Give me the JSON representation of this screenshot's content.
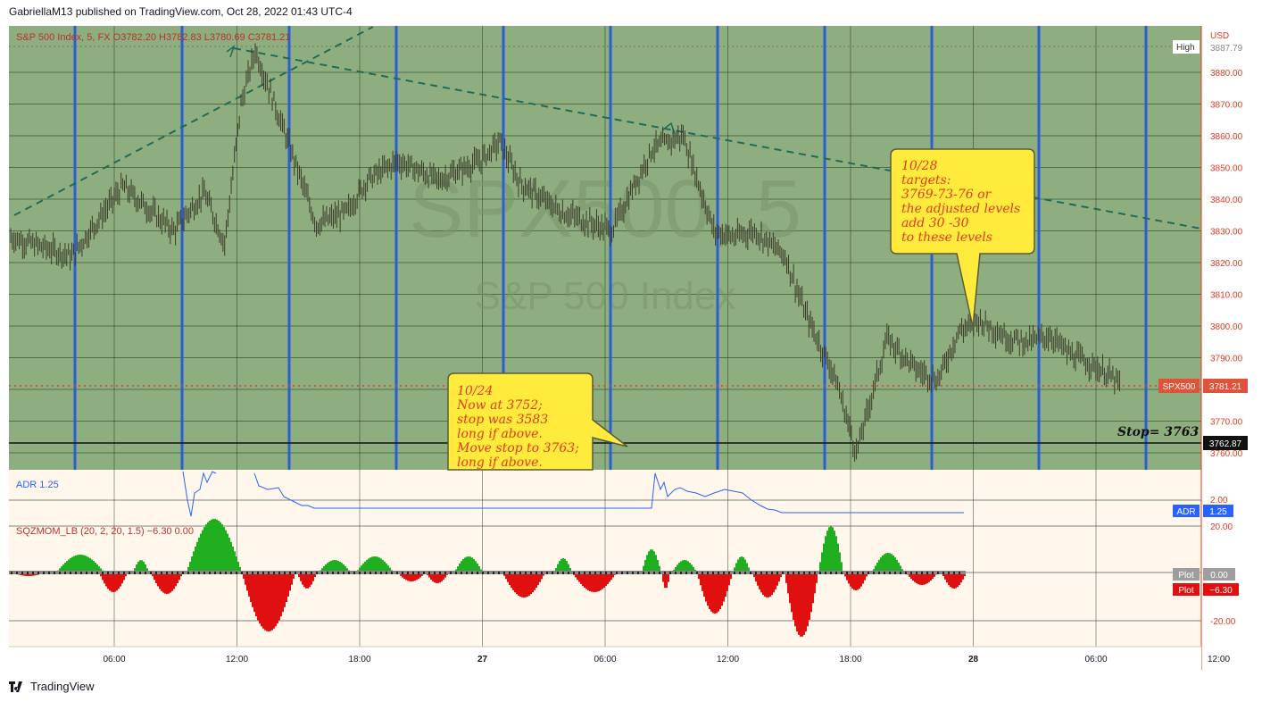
{
  "header": {
    "published": "GabriellaM13 published on TradingView.com, Oct 28, 2022 01:43 UTC-4"
  },
  "legend": {
    "main": "S&P 500 Index, 5, FX  O3782.20  H3782.83  L3780.69  C3781.21",
    "adr": "ADR  1.25",
    "sqz": "SQZMOM_LB (20, 2, 20, 1.5)  −6.30  0.00"
  },
  "watermark": {
    "symbol": "SPX500, 5",
    "name": "S&P 500 Index"
  },
  "price_axis": {
    "currency": "USD",
    "ticks": [
      "3880.00",
      "3870.00",
      "3860.00",
      "3850.00",
      "3840.00",
      "3830.00",
      "3820.00",
      "3810.00",
      "3800.00",
      "3790.00",
      "3770.00",
      "3760.00"
    ],
    "high_label": "High",
    "high_value": "3887.79",
    "symbol_tag": "SPX500",
    "last_value": "3781.21",
    "stop_value": "3762.87"
  },
  "adr_axis": {
    "tick": "2.00",
    "tag": "ADR",
    "value": "1.25"
  },
  "sqz_axis": {
    "ticks": [
      "20.00",
      "-20.00"
    ],
    "plot1_tag": "Plot",
    "plot1_value": "0.00",
    "plot2_tag": "Plot",
    "plot2_value": "−6.30"
  },
  "time_axis": {
    "ticks": [
      "06:00",
      "12:00",
      "18:00",
      "27",
      "06:00",
      "12:00",
      "18:00",
      "28",
      "06:00",
      "12:00"
    ]
  },
  "annotations": {
    "stop_label": "Stop= 3763",
    "note_1024": [
      "10/24",
      "Now at 3752;",
      "stop was 3583",
      " long if above.",
      "Move stop to 3763;",
      "long if above."
    ],
    "note_1028": [
      "10/28",
      "targets:",
      "3769-73-76 or",
      "the adjusted levels",
      "add 30 -30",
      "to these levels"
    ]
  },
  "footer": {
    "brand": "TradingView"
  },
  "colors": {
    "chart_bg": "#8fae7f",
    "indicator_bg": "#fff7ec",
    "vline": "#2b5fd9",
    "trend": "#1f6b5a",
    "dotted_red": "#e0533b",
    "note_bg": "#ffeb3b",
    "note_text": "#e03a1e",
    "bull": "#1fae1f",
    "bear": "#e01010",
    "adr_line": "#2962ff"
  },
  "chart_data": {
    "type": "line",
    "title": "S&P 500 Index, 5, FX",
    "ylim": [
      3757,
      3891
    ],
    "series": [
      {
        "name": "S&P 500 Index",
        "x_hours": [
          0,
          3,
          5.5,
          8,
          9.5,
          10.5,
          11.3,
          12,
          13.5,
          15,
          16.5,
          17.5,
          19,
          21,
          23,
          24,
          25,
          27,
          29.5,
          31.5,
          33,
          34.5,
          35.5,
          36.5,
          38,
          39,
          40.5,
          41.5,
          43,
          44.5,
          45.5,
          46.5,
          47.5,
          49,
          50,
          51,
          52,
          53,
          54,
          54.5
        ],
        "values": [
          3828,
          3822,
          3844,
          3830,
          3842,
          3826,
          3870,
          3887,
          3860,
          3832,
          3836,
          3846,
          3852,
          3846,
          3852,
          3858,
          3845,
          3836,
          3830,
          3856,
          3860,
          3830,
          3828,
          3830,
          3822,
          3804,
          3783,
          3760,
          3796,
          3786,
          3783,
          3798,
          3802,
          3796,
          3795,
          3797,
          3791,
          3788,
          3784,
          3781
        ]
      }
    ],
    "stop_level": 3762.87,
    "last_price": 3781.21
  }
}
